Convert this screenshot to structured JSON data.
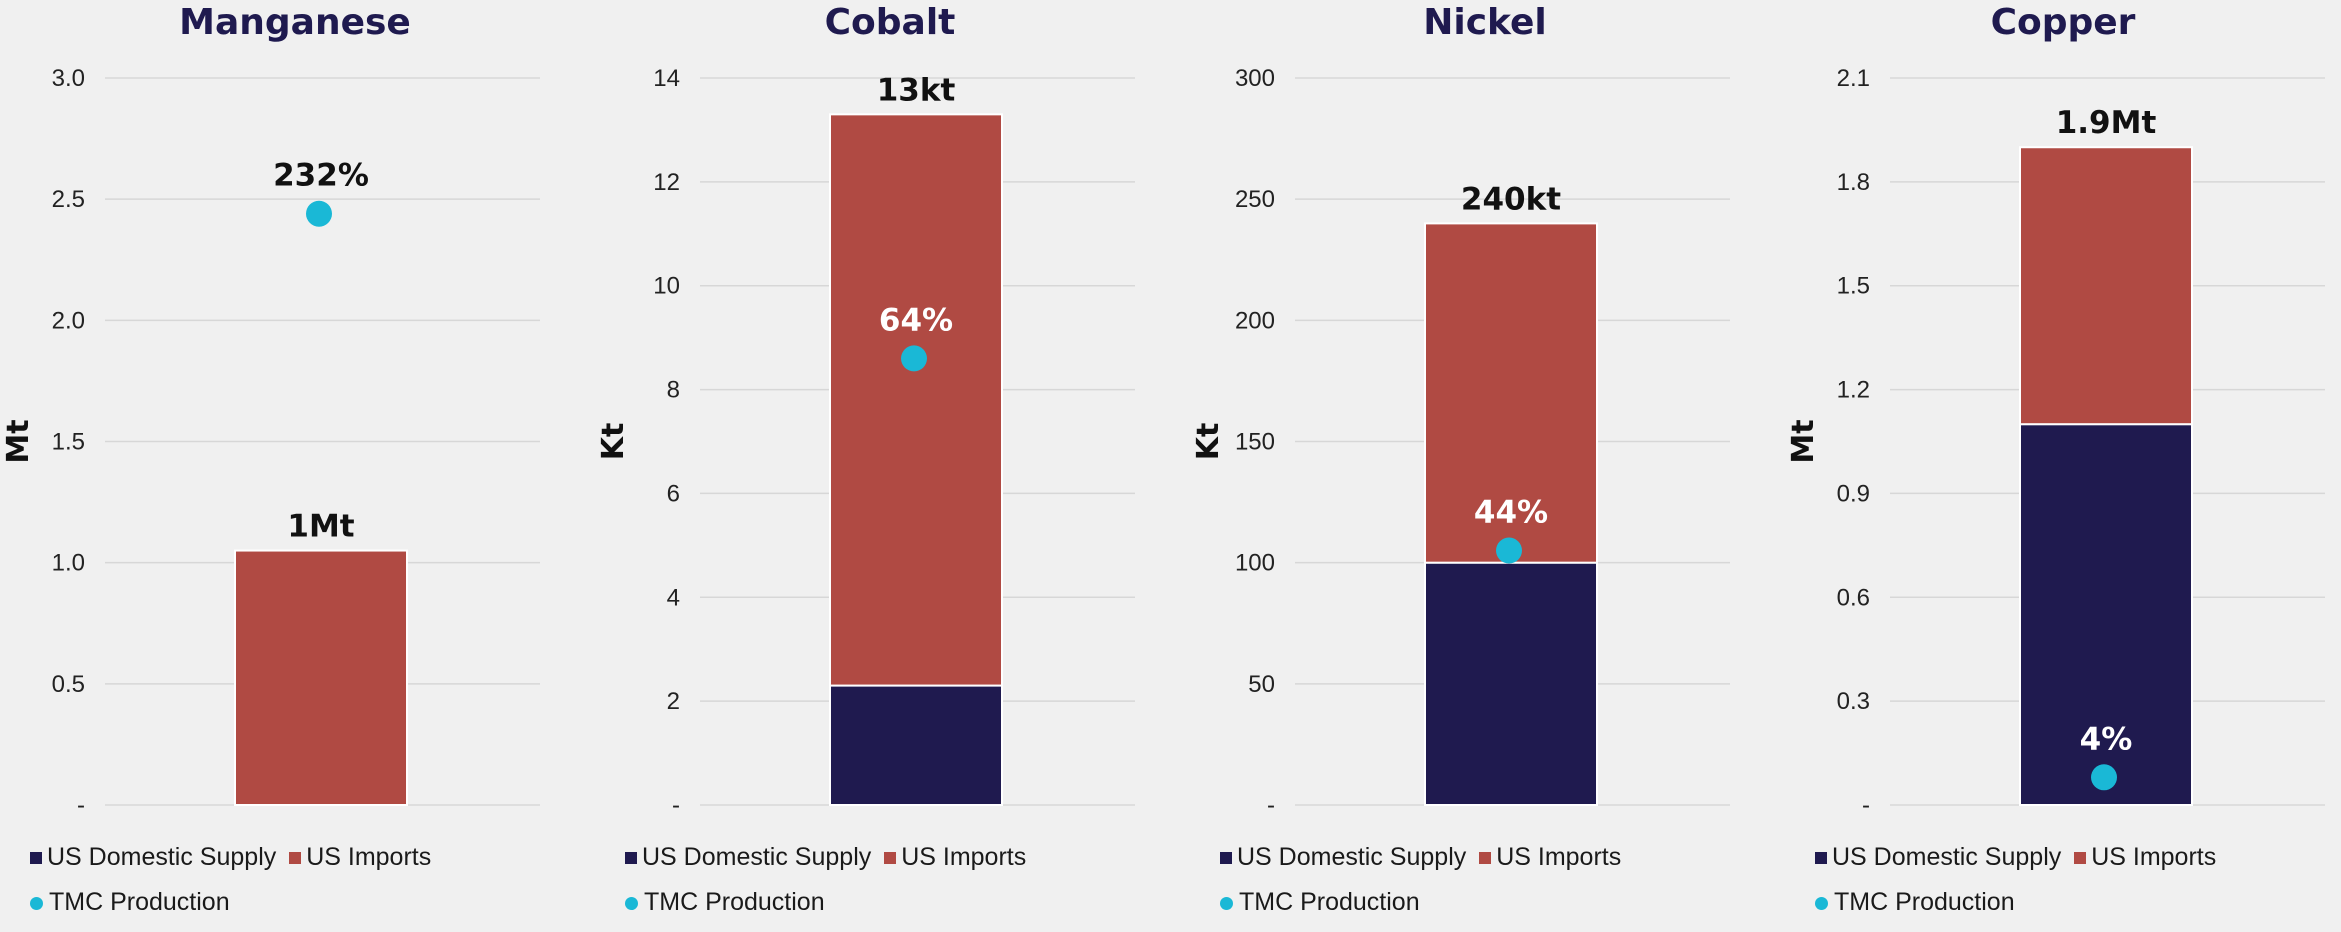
{
  "colors": {
    "domestic": "#1f1a4f",
    "imports": "#b04a43",
    "tmc": "#1ab8d6",
    "title": "#1f1a4f",
    "grid": "#d7d7d7"
  },
  "legend": {
    "domestic": "US Domestic Supply",
    "imports": "US Imports",
    "tmc": "TMC Production"
  },
  "chart_data": [
    {
      "type": "bar",
      "title": "Manganese",
      "ylabel": "Mt",
      "ylim": [
        0,
        3.0
      ],
      "ticks": [
        "-",
        "0.5",
        "1.0",
        "1.5",
        "2.0",
        "2.5",
        "3.0"
      ],
      "tick_values": [
        0,
        0.5,
        1.0,
        1.5,
        2.0,
        2.5,
        3.0
      ],
      "grid": true,
      "stacked": true,
      "series": [
        {
          "name": "US Domestic Supply",
          "values": [
            0
          ]
        },
        {
          "name": "US Imports",
          "values": [
            1.05
          ]
        }
      ],
      "total_label": "1Mt",
      "tmc": {
        "value": 2.44,
        "label": "232%"
      }
    },
    {
      "type": "bar",
      "title": "Cobalt",
      "ylabel": "Kt",
      "ylim": [
        0,
        14
      ],
      "ticks": [
        "-",
        "2",
        "4",
        "6",
        "8",
        "10",
        "12",
        "14"
      ],
      "tick_values": [
        0,
        2,
        4,
        6,
        8,
        10,
        12,
        14
      ],
      "grid": true,
      "stacked": true,
      "series": [
        {
          "name": "US Domestic Supply",
          "values": [
            2.3
          ]
        },
        {
          "name": "US Imports",
          "values": [
            11.0
          ]
        }
      ],
      "total_label": "13kt",
      "tmc": {
        "value": 8.6,
        "label": "64%"
      }
    },
    {
      "type": "bar",
      "title": "Nickel",
      "ylabel": "Kt",
      "ylim": [
        0,
        300
      ],
      "ticks": [
        "-",
        "50",
        "100",
        "150",
        "200",
        "250",
        "300"
      ],
      "tick_values": [
        0,
        50,
        100,
        150,
        200,
        250,
        300
      ],
      "grid": true,
      "stacked": true,
      "series": [
        {
          "name": "US Domestic Supply",
          "values": [
            100
          ]
        },
        {
          "name": "US Imports",
          "values": [
            140
          ]
        }
      ],
      "total_label": "240kt",
      "tmc": {
        "value": 105,
        "label": "44%"
      }
    },
    {
      "type": "bar",
      "title": "Copper",
      "ylabel": "Mt",
      "ylim": [
        0,
        2.1
      ],
      "ticks": [
        "-",
        "0.3",
        "0.6",
        "0.9",
        "1.2",
        "1.5",
        "1.8",
        "2.1"
      ],
      "tick_values": [
        0,
        0.3,
        0.6,
        0.9,
        1.2,
        1.5,
        1.8,
        2.1
      ],
      "grid": true,
      "stacked": true,
      "series": [
        {
          "name": "US Domestic Supply",
          "values": [
            1.1
          ]
        },
        {
          "name": "US Imports",
          "values": [
            0.8
          ]
        }
      ],
      "total_label": "1.9Mt",
      "tmc": {
        "value": 0.08,
        "label": "4%"
      }
    }
  ]
}
